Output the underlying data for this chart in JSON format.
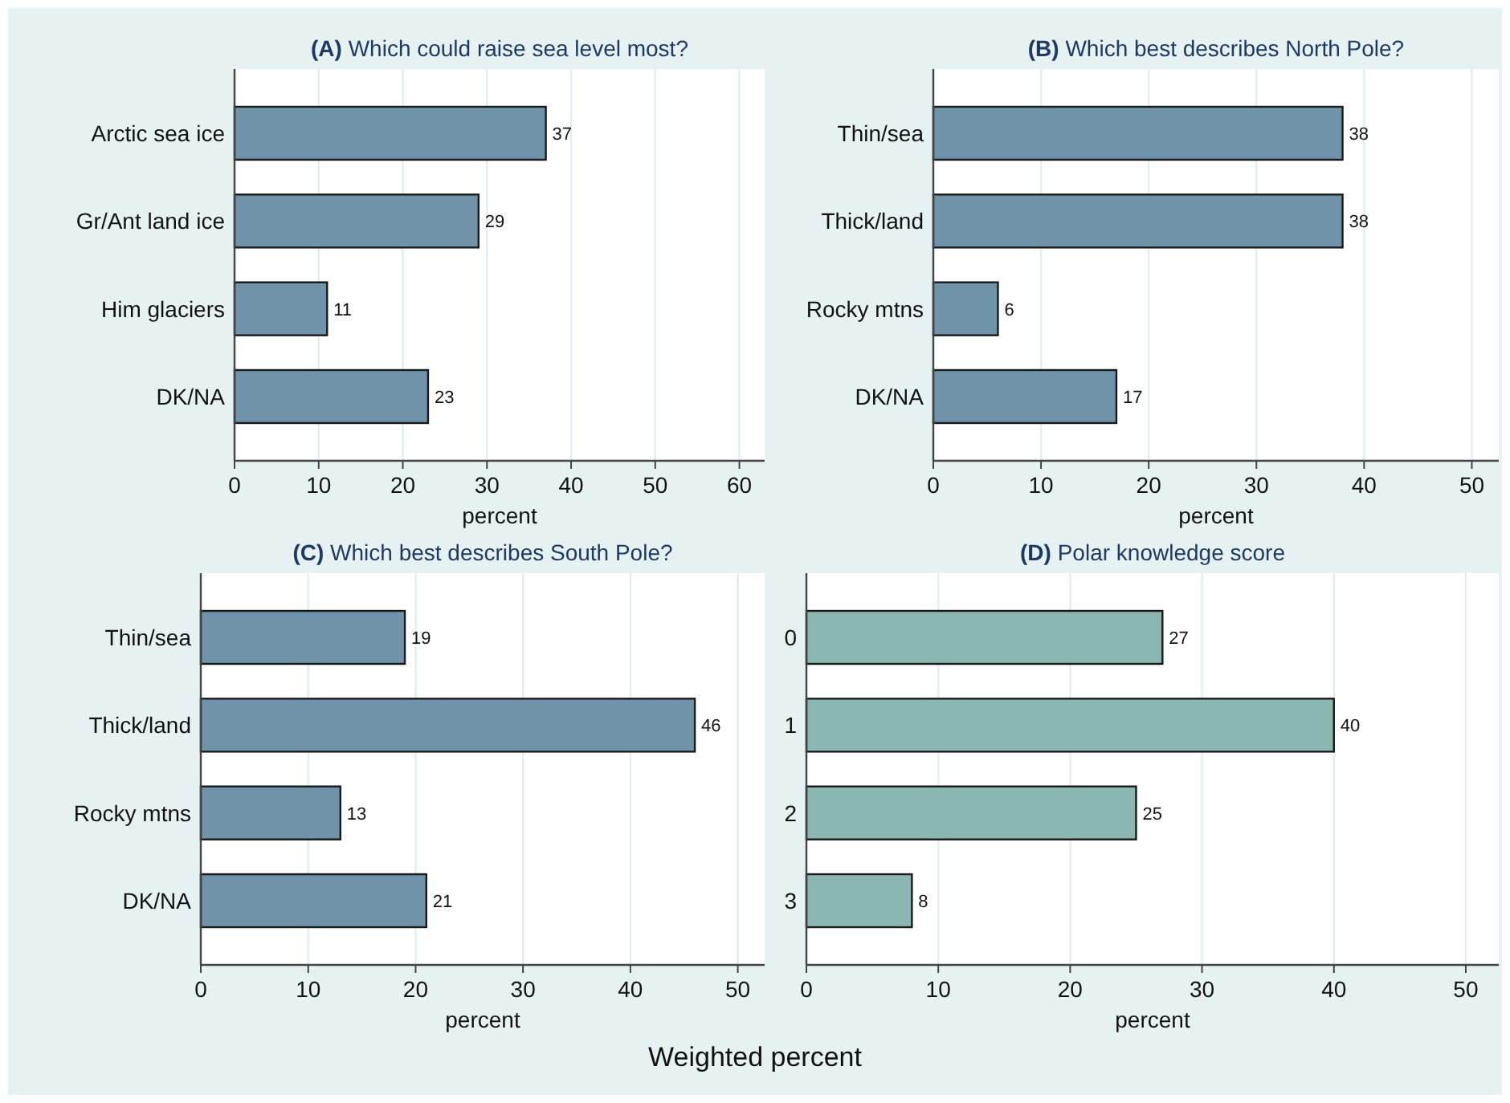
{
  "chart_data": [
    {
      "type": "bar",
      "orientation": "horizontal",
      "title": "(A) Which could raise sea level most?",
      "xlabel": "percent",
      "categories": [
        "Arctic sea ice",
        "Gr/Ant land ice",
        "Him glaciers",
        "DK/NA"
      ],
      "values": [
        37,
        29,
        11,
        23
      ],
      "color": "#6f93a8",
      "xlim": [
        0,
        63
      ],
      "xticks": [
        0,
        10,
        20,
        30,
        40,
        50,
        60
      ],
      "grid": "x",
      "data_labels": true,
      "annotations": [
        "Weighted percent"
      ]
    },
    {
      "type": "bar",
      "orientation": "horizontal",
      "title": "(B) Which best describes North Pole?",
      "xlabel": "percent",
      "categories": [
        "Thin/sea",
        "Thick/land",
        "Rocky mtns",
        "DK/NA"
      ],
      "values": [
        38,
        38,
        6,
        17
      ],
      "color": "#6f93a8",
      "xlim": [
        0,
        52.5
      ],
      "xticks": [
        0,
        10,
        20,
        30,
        40,
        50
      ],
      "grid": "x",
      "data_labels": true
    },
    {
      "type": "bar",
      "orientation": "horizontal",
      "title": "(C)  Which best describes South Pole?",
      "xlabel": "percent",
      "categories": [
        "Thin/sea",
        "Thick/land",
        "Rocky mtns",
        "DK/NA"
      ],
      "values": [
        19,
        46,
        13,
        21
      ],
      "color": "#6f93a8",
      "xlim": [
        0,
        52.5
      ],
      "xticks": [
        0,
        10,
        20,
        30,
        40,
        50
      ],
      "grid": "x",
      "data_labels": true
    },
    {
      "type": "bar",
      "orientation": "horizontal",
      "title": "(D) Polar knowledge score",
      "xlabel": "percent",
      "categories": [
        "0",
        "1",
        "2",
        "3"
      ],
      "values": [
        27,
        40,
        25,
        8
      ],
      "color": "#8bb7b1",
      "xlim": [
        0,
        52.5
      ],
      "xticks": [
        0,
        10,
        20,
        30,
        40,
        50
      ],
      "grid": "x",
      "data_labels": true
    }
  ]
}
